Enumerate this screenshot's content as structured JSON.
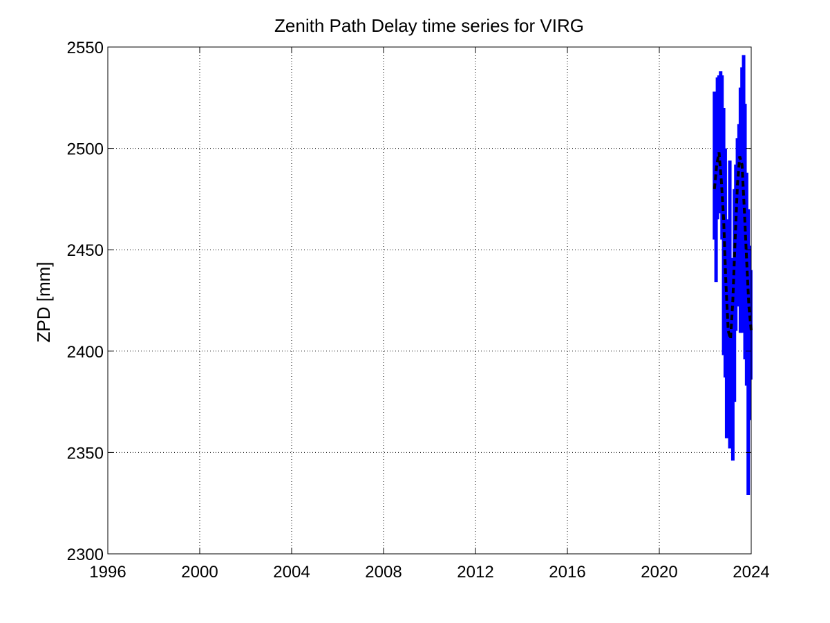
{
  "chart_data": {
    "type": "line",
    "title": "Zenith Path Delay time series for VIRG",
    "xlabel": "",
    "ylabel": "ZPD [mm]",
    "xlim": [
      1996,
      2024
    ],
    "ylim": [
      2300,
      2550
    ],
    "xticks": [
      1996,
      2000,
      2004,
      2008,
      2012,
      2016,
      2020,
      2024
    ],
    "yticks": [
      2300,
      2350,
      2400,
      2450,
      2500,
      2550
    ],
    "grid": true,
    "legend": "none",
    "series": [
      {
        "style": "solid-vertical-bars",
        "color": "#0000ff",
        "bars": [
          [
            2022.4,
            2455,
            2528
          ],
          [
            2022.47,
            2434,
            2526
          ],
          [
            2022.53,
            2465,
            2535
          ],
          [
            2022.6,
            2470,
            2536
          ],
          [
            2022.67,
            2468,
            2538
          ],
          [
            2022.73,
            2455,
            2536
          ],
          [
            2022.8,
            2398,
            2520
          ],
          [
            2022.87,
            2387,
            2500
          ],
          [
            2022.93,
            2357,
            2465
          ],
          [
            2023.0,
            2360,
            2438
          ],
          [
            2023.07,
            2352,
            2494
          ],
          [
            2023.13,
            2367,
            2436
          ],
          [
            2023.2,
            2346,
            2446
          ],
          [
            2023.27,
            2375,
            2480
          ],
          [
            2023.33,
            2410,
            2492
          ],
          [
            2023.4,
            2422,
            2505
          ],
          [
            2023.47,
            2430,
            2512
          ],
          [
            2023.53,
            2409,
            2530
          ],
          [
            2023.6,
            2409,
            2540
          ],
          [
            2023.67,
            2420,
            2546
          ],
          [
            2023.73,
            2396,
            2522
          ],
          [
            2023.8,
            2383,
            2488
          ],
          [
            2023.87,
            2329,
            2470
          ],
          [
            2023.93,
            2366,
            2452
          ],
          [
            2023.98,
            2386,
            2440
          ]
        ]
      },
      {
        "style": "dashed-line",
        "color": "#000000",
        "x": [
          2022.4,
          2022.5,
          2022.6,
          2022.7,
          2022.8,
          2022.9,
          2023.0,
          2023.1,
          2023.2,
          2023.3,
          2023.4,
          2023.5,
          2023.6,
          2023.7,
          2023.8,
          2023.9,
          2024.0
        ],
        "y": [
          2480,
          2492,
          2498,
          2484,
          2465,
          2433,
          2410,
          2406,
          2425,
          2455,
          2482,
          2496,
          2492,
          2470,
          2445,
          2422,
          2410
        ]
      }
    ]
  }
}
